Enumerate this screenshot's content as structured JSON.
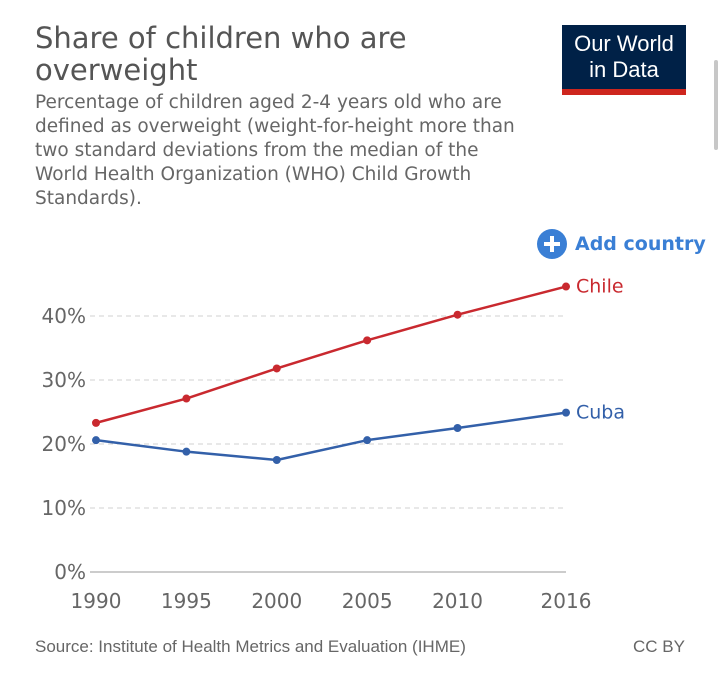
{
  "header": {
    "title": "Share of children who are overweight",
    "subtitle": "Percentage of children aged 2-4 years old who are defined as overweight (weight-for-height more than two standard deviations from the median of the World Health Organization (WHO) Child Growth Standards).",
    "logo_line1": "Our World",
    "logo_line2": "in Data"
  },
  "controls": {
    "add_country_label": "Add country",
    "add_country_icon": "plus-circle-icon"
  },
  "footer": {
    "source": "Source: Institute of Health Metrics and Evaluation (IHME)",
    "license": "CC BY"
  },
  "colors": {
    "chile": "#c9292f",
    "cuba": "#3360a9",
    "grid": "#d0d0d0",
    "axis_text": "#666666",
    "accent": "#3a7fd5",
    "logo_bg": "#002147",
    "logo_bar": "#ce261e"
  },
  "chart_data": {
    "type": "line",
    "title": "Share of children who are overweight",
    "x": [
      1990,
      1995,
      2000,
      2005,
      2010,
      2016
    ],
    "x_tick_labels": [
      "1990",
      "1995",
      "2000",
      "2005",
      "2010",
      "2016"
    ],
    "y_tick_values": [
      0,
      10,
      20,
      30,
      40
    ],
    "y_tick_labels": [
      "0%",
      "10%",
      "20%",
      "30%",
      "40%"
    ],
    "ylim": [
      0,
      40
    ],
    "grid": true,
    "grid_style": "dashed",
    "series": [
      {
        "name": "Chile",
        "color_key": "chile",
        "values": [
          23.3,
          27.1,
          31.8,
          36.2,
          40.2,
          44.6
        ]
      },
      {
        "name": "Cuba",
        "color_key": "cuba",
        "values": [
          20.6,
          18.8,
          17.5,
          20.6,
          22.5,
          24.9
        ]
      }
    ]
  }
}
